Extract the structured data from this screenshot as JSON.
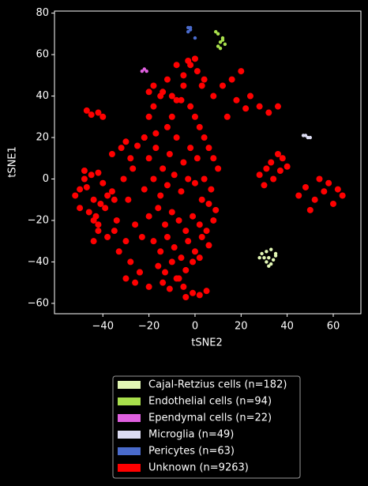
{
  "chart_data": {
    "type": "scatter",
    "xlabel": "tSNE2",
    "ylabel": "tSNE1",
    "xlim": [
      -61,
      72
    ],
    "ylim": [
      -65,
      81
    ],
    "xticks": [
      {
        "value": -40,
        "label": "−40"
      },
      {
        "value": -20,
        "label": "−20"
      },
      0,
      20,
      40,
      60
    ],
    "yticks": [
      {
        "value": -60,
        "label": "−60"
      },
      {
        "value": -40,
        "label": "−40"
      },
      {
        "value": -20,
        "label": "−20"
      },
      0,
      20,
      40,
      60,
      80
    ],
    "legend": "below",
    "series": [
      {
        "name": "Cajal-Retzius cells (n=182)",
        "color": "#e2f7b4",
        "x": [
          29,
          31,
          33,
          35,
          30,
          32,
          34,
          31,
          33,
          28,
          35,
          32
        ],
        "values": [
          -36,
          -35,
          -34,
          -36,
          -38,
          -38,
          -39,
          -40,
          -41,
          -38,
          -37,
          -42
        ]
      },
      {
        "name": "Endothelial cells (n=94)",
        "color": "#a9e04c",
        "x": [
          10,
          11,
          12,
          13,
          11,
          12,
          9,
          10
        ],
        "values": [
          64,
          66,
          67,
          65,
          63,
          68,
          71,
          70
        ]
      },
      {
        "name": "Ependymal cells (n=22)",
        "color": "#e060e0",
        "x": [
          -23,
          -22,
          -21
        ],
        "values": [
          52,
          53,
          52
        ]
      },
      {
        "name": "Microglia (n=49)",
        "color": "#dcdcf2",
        "x": [
          47,
          48,
          49,
          50
        ],
        "values": [
          21,
          21,
          20,
          20
        ]
      },
      {
        "name": "Pericytes (n=63)",
        "color": "#4a6bcc",
        "x": [
          -3,
          -2,
          -3,
          -2,
          0
        ],
        "values": [
          73,
          72,
          71,
          73,
          68
        ]
      },
      {
        "name": "Unknown (n=9263)",
        "color": "#ff0000",
        "x": [
          -50,
          -48,
          -45,
          -42,
          -40,
          -38,
          -52,
          -47,
          -44,
          -41,
          -36,
          -50,
          -46,
          -43,
          -39,
          -35,
          -48,
          -44,
          -42,
          -47,
          -45,
          -42,
          -40,
          -36,
          -32,
          -30,
          -28,
          -25,
          -22,
          -35,
          -30,
          -26,
          -23,
          -33,
          -28,
          -24,
          -34,
          -29,
          -31,
          -27,
          -20,
          -18,
          -15,
          -12,
          -10,
          -8,
          -5,
          -2,
          0,
          2,
          4,
          6,
          8,
          10,
          -20,
          -17,
          -14,
          -11,
          -8,
          -5,
          -2,
          1,
          4,
          7,
          -22,
          -18,
          -15,
          -12,
          -9,
          -6,
          -3,
          0,
          3,
          6,
          9,
          -20,
          -16,
          -13,
          -10,
          -7,
          -4,
          -1,
          2,
          5,
          8,
          -18,
          -15,
          -12,
          -9,
          -6,
          -3,
          0,
          3,
          6,
          -16,
          -13,
          -10,
          -7,
          -4,
          -1,
          2,
          -14,
          -11,
          -8,
          -5,
          -4,
          -1,
          2,
          5,
          -5,
          -2,
          1,
          4,
          -3,
          0,
          3,
          -18,
          -14,
          -10,
          -6,
          -12,
          -8,
          8,
          12,
          16,
          20,
          24,
          28,
          32,
          36,
          14,
          18,
          22,
          28,
          31,
          34,
          37,
          30,
          33,
          45,
          48,
          52,
          56,
          60,
          64,
          50,
          54,
          58,
          62,
          -42,
          -38,
          -44,
          -30,
          -26,
          -20,
          -24,
          -22,
          -17,
          -20,
          36,
          38,
          40
        ],
        "values": [
          -5,
          0,
          2,
          3,
          -2,
          -8,
          -8,
          -4,
          -10,
          -12,
          -6,
          -14,
          -16,
          -18,
          -14,
          -10,
          4,
          -20,
          -22,
          33,
          31,
          32,
          30,
          12,
          15,
          18,
          10,
          16,
          20,
          -25,
          -30,
          -22,
          -28,
          -35,
          -40,
          -45,
          -20,
          -10,
          0,
          5,
          30,
          35,
          40,
          25,
          30,
          38,
          45,
          35,
          30,
          25,
          20,
          15,
          10,
          5,
          10,
          15,
          5,
          12,
          20,
          8,
          15,
          10,
          0,
          -5,
          -5,
          0,
          -8,
          -3,
          2,
          -6,
          0,
          -2,
          -10,
          -12,
          -15,
          -18,
          -14,
          -22,
          -16,
          -20,
          -25,
          -18,
          -22,
          -25,
          -20,
          -30,
          -35,
          -28,
          -33,
          -38,
          -30,
          -35,
          -28,
          -32,
          -42,
          -45,
          -40,
          -48,
          -44,
          -40,
          -38,
          -50,
          -53,
          -48,
          -52,
          -57,
          -55,
          -56,
          -54,
          50,
          55,
          52,
          48,
          57,
          58,
          45,
          45,
          42,
          40,
          38,
          48,
          55,
          40,
          45,
          48,
          52,
          40,
          35,
          32,
          35,
          30,
          38,
          34,
          2,
          5,
          0,
          4,
          -3,
          8,
          -8,
          -4,
          -10,
          -6,
          -12,
          -8,
          -15,
          0,
          -2,
          -5,
          -25,
          -28,
          -30,
          -48,
          -50,
          -52,
          -45,
          20,
          22,
          42,
          12,
          10,
          6
        ]
      }
    ]
  }
}
